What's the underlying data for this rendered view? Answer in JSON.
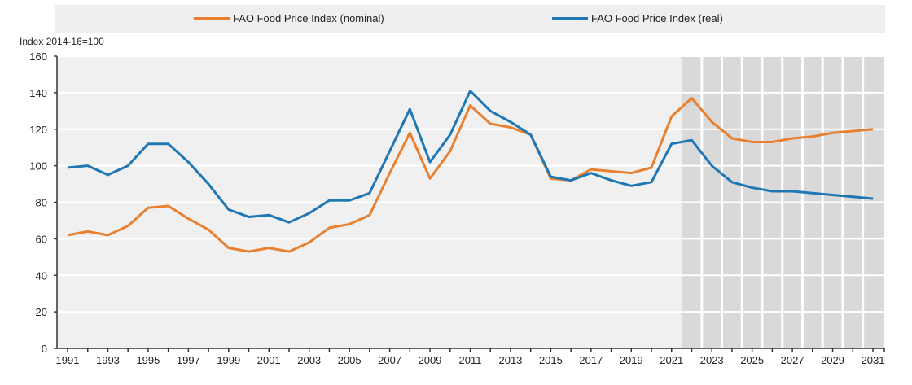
{
  "chart_data": {
    "type": "line",
    "title": "",
    "xlabel": "",
    "ylabel": "Index 2014-16=100",
    "ylim": [
      0,
      160
    ],
    "yticks": [
      0,
      20,
      40,
      60,
      80,
      100,
      120,
      140,
      160
    ],
    "xlim": [
      1991,
      2031
    ],
    "xtick_labels": [
      "1991",
      "1993",
      "1995",
      "1997",
      "1999",
      "2001",
      "2003",
      "2005",
      "2007",
      "2009",
      "2011",
      "2013",
      "2015",
      "2017",
      "2019",
      "2021",
      "2023",
      "2025",
      "2027",
      "2029",
      "2031"
    ],
    "projection_shading_from": 2021.5,
    "projection_shading_to": 2031.5,
    "grid": "horizontal",
    "legend_position": "top",
    "x": [
      1991,
      1992,
      1993,
      1994,
      1995,
      1996,
      1997,
      1998,
      1999,
      2000,
      2001,
      2002,
      2003,
      2004,
      2005,
      2006,
      2007,
      2008,
      2009,
      2010,
      2011,
      2012,
      2013,
      2014,
      2015,
      2016,
      2017,
      2018,
      2019,
      2020,
      2021,
      2022,
      2023,
      2024,
      2025,
      2026,
      2027,
      2028,
      2029,
      2030,
      2031
    ],
    "series": [
      {
        "name": "FAO Food Price Index (nominal)",
        "color": "#e8802f",
        "values": [
          62,
          64,
          62,
          67,
          77,
          78,
          71,
          65,
          55,
          53,
          55,
          53,
          58,
          66,
          68,
          73,
          96,
          118,
          93,
          108,
          133,
          123,
          121,
          117,
          93,
          92,
          98,
          97,
          96,
          99,
          127,
          137,
          124,
          115,
          113,
          113,
          115,
          116,
          118,
          119,
          120
        ]
      },
      {
        "name": "FAO Food Price Index (real)",
        "color": "#1f77b4",
        "values": [
          99,
          100,
          95,
          100,
          112,
          112,
          102,
          90,
          76,
          72,
          73,
          69,
          74,
          81,
          81,
          85,
          108,
          131,
          102,
          117,
          141,
          130,
          124,
          117,
          94,
          92,
          96,
          92,
          89,
          91,
          112,
          114,
          100,
          91,
          88,
          86,
          86,
          85,
          84,
          83,
          82
        ]
      }
    ]
  }
}
